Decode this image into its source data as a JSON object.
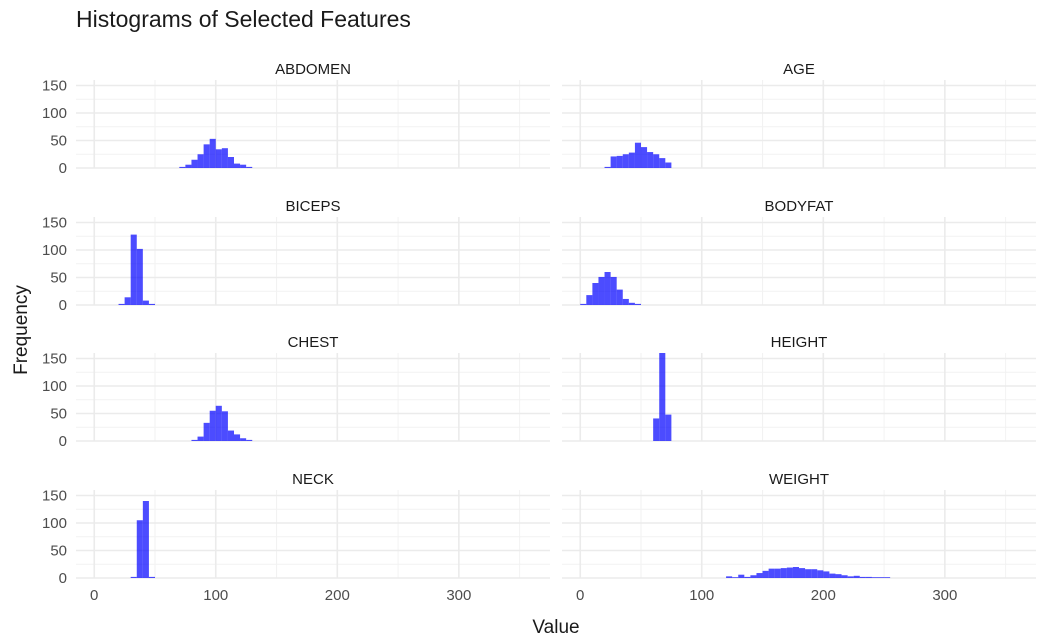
{
  "chart_data": {
    "type": "bar",
    "title": "Histograms of Selected Features",
    "xlabel": "Value",
    "ylabel": "Frequency",
    "xlim": [
      -15,
      375
    ],
    "ylim": [
      0,
      160
    ],
    "x_ticks": [
      0,
      100,
      200,
      300
    ],
    "y_ticks": [
      0,
      50,
      100,
      150
    ],
    "grid": true,
    "bin_width": 5,
    "facets": [
      {
        "name": "ABDOMEN",
        "bins": [
          [
            70,
            2
          ],
          [
            75,
            6
          ],
          [
            80,
            15
          ],
          [
            85,
            25
          ],
          [
            90,
            43
          ],
          [
            95,
            53
          ],
          [
            100,
            34
          ],
          [
            105,
            36
          ],
          [
            110,
            20
          ],
          [
            115,
            8
          ],
          [
            120,
            6
          ],
          [
            125,
            2
          ]
        ]
      },
      {
        "name": "AGE",
        "bins": [
          [
            20,
            2
          ],
          [
            25,
            21
          ],
          [
            30,
            22
          ],
          [
            35,
            25
          ],
          [
            40,
            28
          ],
          [
            45,
            46
          ],
          [
            50,
            38
          ],
          [
            55,
            29
          ],
          [
            60,
            25
          ],
          [
            65,
            18
          ],
          [
            70,
            10
          ]
        ]
      },
      {
        "name": "BICEPS",
        "bins": [
          [
            20,
            2
          ],
          [
            25,
            14
          ],
          [
            30,
            128
          ],
          [
            35,
            102
          ],
          [
            40,
            8
          ],
          [
            45,
            2
          ]
        ]
      },
      {
        "name": "BODYFAT",
        "bins": [
          [
            0,
            2
          ],
          [
            5,
            18
          ],
          [
            10,
            40
          ],
          [
            15,
            51
          ],
          [
            20,
            60
          ],
          [
            25,
            51
          ],
          [
            30,
            28
          ],
          [
            35,
            11
          ],
          [
            40,
            4
          ],
          [
            45,
            2
          ]
        ]
      },
      {
        "name": "CHEST",
        "bins": [
          [
            80,
            2
          ],
          [
            85,
            8
          ],
          [
            90,
            33
          ],
          [
            95,
            55
          ],
          [
            100,
            64
          ],
          [
            105,
            54
          ],
          [
            110,
            19
          ],
          [
            115,
            12
          ],
          [
            120,
            5
          ],
          [
            125,
            2
          ]
        ]
      },
      {
        "name": "HEIGHT",
        "bins": [
          [
            60,
            41
          ],
          [
            65,
            160
          ],
          [
            70,
            48
          ]
        ]
      },
      {
        "name": "NECK",
        "bins": [
          [
            30,
            2
          ],
          [
            35,
            105
          ],
          [
            40,
            140
          ],
          [
            45,
            2
          ]
        ]
      },
      {
        "name": "WEIGHT",
        "bins": [
          [
            120,
            3
          ],
          [
            125,
            1
          ],
          [
            130,
            6
          ],
          [
            135,
            2
          ],
          [
            140,
            5
          ],
          [
            145,
            9
          ],
          [
            150,
            13
          ],
          [
            155,
            17
          ],
          [
            160,
            17
          ],
          [
            165,
            18
          ],
          [
            170,
            19
          ],
          [
            175,
            20
          ],
          [
            180,
            18
          ],
          [
            185,
            16
          ],
          [
            190,
            16
          ],
          [
            195,
            14
          ],
          [
            200,
            12
          ],
          [
            205,
            8
          ],
          [
            210,
            7
          ],
          [
            215,
            5
          ],
          [
            220,
            3
          ],
          [
            225,
            4
          ],
          [
            230,
            2
          ],
          [
            235,
            2
          ],
          [
            240,
            1
          ],
          [
            245,
            1
          ],
          [
            250,
            1
          ]
        ]
      }
    ]
  }
}
